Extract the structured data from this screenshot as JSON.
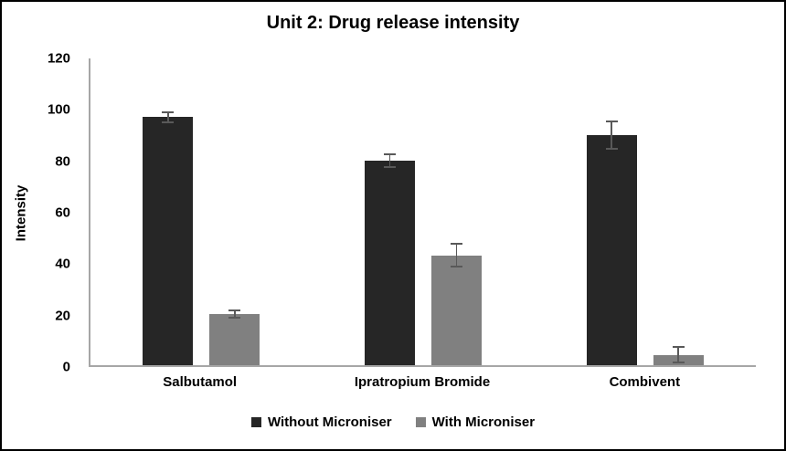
{
  "chart_data": {
    "type": "bar",
    "title": "Unit 2: Drug release intensity",
    "xlabel": "",
    "ylabel": "Intensity",
    "categories": [
      "Salbutamol",
      "Ipratropium Bromide",
      "Combivent"
    ],
    "series": [
      {
        "name": "Without Microniser",
        "color": "#262626",
        "values": [
          97,
          80,
          90
        ],
        "errors": [
          2,
          2.5,
          5.5
        ]
      },
      {
        "name": "With Microniser",
        "color": "#808080",
        "values": [
          20,
          43,
          4
        ],
        "errors": [
          1.5,
          4.5,
          3
        ]
      }
    ],
    "ylim": [
      0,
      120
    ],
    "y_ticks": [
      0,
      20,
      40,
      60,
      80,
      100,
      120
    ],
    "grid": false,
    "legend_position": "bottom",
    "error_bar_color": "#595959",
    "axis_line_color": "#a6a6a6"
  }
}
